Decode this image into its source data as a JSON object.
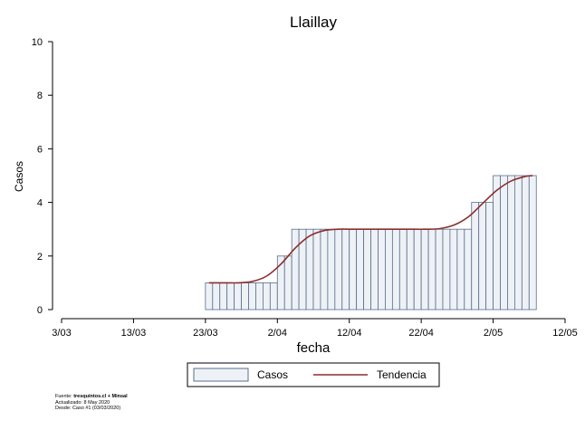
{
  "chart_data": {
    "type": "bar",
    "title": "Llaillay",
    "xlabel": "fecha",
    "ylabel": "Casos",
    "ylim": [
      0,
      10
    ],
    "yticks": [
      0,
      2,
      4,
      6,
      8,
      10
    ],
    "xlim": [
      "2020-03-03",
      "2020-05-12"
    ],
    "xticks": [
      {
        "date": "2020-03-03",
        "label": "3/03"
      },
      {
        "date": "2020-03-13",
        "label": "13/03"
      },
      {
        "date": "2020-03-23",
        "label": "23/03"
      },
      {
        "date": "2020-04-02",
        "label": "2/04"
      },
      {
        "date": "2020-04-12",
        "label": "12/04"
      },
      {
        "date": "2020-04-22",
        "label": "22/04"
      },
      {
        "date": "2020-05-02",
        "label": "2/05"
      },
      {
        "date": "2020-05-12",
        "label": "12/05"
      }
    ],
    "grid": false,
    "legend_position": "bottom",
    "series": [
      {
        "name": "Casos",
        "kind": "bar",
        "color": "#eef2f6",
        "edge_color": "#5a6e8c",
        "points": [
          {
            "x": "2020-03-23",
            "y": 1
          },
          {
            "x": "2020-03-24",
            "y": 1
          },
          {
            "x": "2020-03-25",
            "y": 1
          },
          {
            "x": "2020-03-26",
            "y": 1
          },
          {
            "x": "2020-03-27",
            "y": 1
          },
          {
            "x": "2020-03-28",
            "y": 1
          },
          {
            "x": "2020-03-29",
            "y": 1
          },
          {
            "x": "2020-03-30",
            "y": 1
          },
          {
            "x": "2020-03-31",
            "y": 1
          },
          {
            "x": "2020-04-01",
            "y": 1
          },
          {
            "x": "2020-04-02",
            "y": 2
          },
          {
            "x": "2020-04-03",
            "y": 2
          },
          {
            "x": "2020-04-04",
            "y": 3
          },
          {
            "x": "2020-04-05",
            "y": 3
          },
          {
            "x": "2020-04-06",
            "y": 3
          },
          {
            "x": "2020-04-07",
            "y": 3
          },
          {
            "x": "2020-04-08",
            "y": 3
          },
          {
            "x": "2020-04-09",
            "y": 3
          },
          {
            "x": "2020-04-10",
            "y": 3
          },
          {
            "x": "2020-04-11",
            "y": 3
          },
          {
            "x": "2020-04-12",
            "y": 3
          },
          {
            "x": "2020-04-13",
            "y": 3
          },
          {
            "x": "2020-04-14",
            "y": 3
          },
          {
            "x": "2020-04-15",
            "y": 3
          },
          {
            "x": "2020-04-16",
            "y": 3
          },
          {
            "x": "2020-04-17",
            "y": 3
          },
          {
            "x": "2020-04-18",
            "y": 3
          },
          {
            "x": "2020-04-19",
            "y": 3
          },
          {
            "x": "2020-04-20",
            "y": 3
          },
          {
            "x": "2020-04-21",
            "y": 3
          },
          {
            "x": "2020-04-22",
            "y": 3
          },
          {
            "x": "2020-04-23",
            "y": 3
          },
          {
            "x": "2020-04-24",
            "y": 3
          },
          {
            "x": "2020-04-25",
            "y": 3
          },
          {
            "x": "2020-04-26",
            "y": 3
          },
          {
            "x": "2020-04-27",
            "y": 3
          },
          {
            "x": "2020-04-28",
            "y": 3
          },
          {
            "x": "2020-04-29",
            "y": 4
          },
          {
            "x": "2020-04-30",
            "y": 4
          },
          {
            "x": "2020-05-01",
            "y": 4
          },
          {
            "x": "2020-05-02",
            "y": 5
          },
          {
            "x": "2020-05-03",
            "y": 5
          },
          {
            "x": "2020-05-04",
            "y": 5
          },
          {
            "x": "2020-05-05",
            "y": 5
          },
          {
            "x": "2020-05-06",
            "y": 5
          },
          {
            "x": "2020-05-07",
            "y": 5
          }
        ]
      },
      {
        "name": "Tendencia",
        "kind": "line",
        "color": "#8b2e2e",
        "points": [
          {
            "x": "2020-03-23",
            "y": 1.0
          },
          {
            "x": "2020-03-25",
            "y": 1.0
          },
          {
            "x": "2020-03-27",
            "y": 1.0
          },
          {
            "x": "2020-03-29",
            "y": 1.05
          },
          {
            "x": "2020-03-31",
            "y": 1.25
          },
          {
            "x": "2020-04-02",
            "y": 1.7
          },
          {
            "x": "2020-04-04",
            "y": 2.3
          },
          {
            "x": "2020-04-06",
            "y": 2.75
          },
          {
            "x": "2020-04-08",
            "y": 2.95
          },
          {
            "x": "2020-04-10",
            "y": 3.0
          },
          {
            "x": "2020-04-12",
            "y": 3.0
          },
          {
            "x": "2020-04-14",
            "y": 3.0
          },
          {
            "x": "2020-04-16",
            "y": 3.0
          },
          {
            "x": "2020-04-18",
            "y": 3.0
          },
          {
            "x": "2020-04-20",
            "y": 3.0
          },
          {
            "x": "2020-04-22",
            "y": 3.0
          },
          {
            "x": "2020-04-24",
            "y": 3.02
          },
          {
            "x": "2020-04-26",
            "y": 3.15
          },
          {
            "x": "2020-04-28",
            "y": 3.45
          },
          {
            "x": "2020-04-30",
            "y": 3.95
          },
          {
            "x": "2020-05-02",
            "y": 4.45
          },
          {
            "x": "2020-05-04",
            "y": 4.8
          },
          {
            "x": "2020-05-06",
            "y": 4.97
          },
          {
            "x": "2020-05-07",
            "y": 5.0
          }
        ]
      }
    ]
  },
  "footer": {
    "source_prefix": "Fuente: ",
    "source_strong": "tresquintos.cl + Minsal",
    "updated": "Actualizado: 8 May 2020",
    "since": "Desde: Caso #1  (03/03/2020)"
  }
}
